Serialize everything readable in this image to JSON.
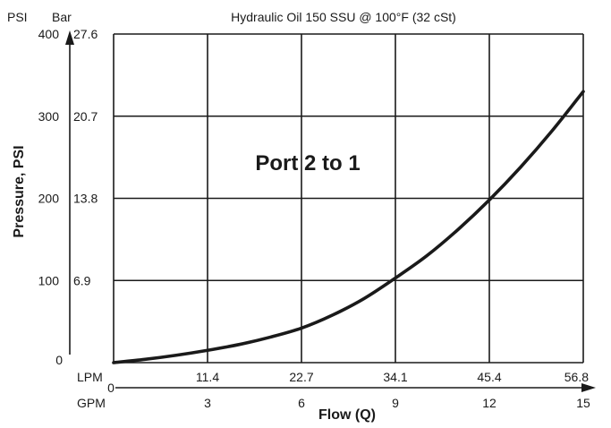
{
  "chart_data": {
    "type": "line",
    "title": "",
    "subtitle": "Hydraulic Oil 150 SSU @ 100°F (32 cSt)",
    "annotation": "Port 2 to 1",
    "ylabel": "Pressure, PSI",
    "xlabel": "Flow (Q)",
    "y_units": {
      "primary": "PSI",
      "secondary": "Bar"
    },
    "x_units": {
      "primary": "LPM",
      "secondary": "GPM"
    },
    "ylim": [
      0,
      400
    ],
    "xlim": [
      0,
      15
    ],
    "y_ticks_psi": [
      "400",
      "300",
      "200",
      "100",
      "0"
    ],
    "y_ticks_bar": [
      "27.6",
      "20.7",
      "13.8",
      "6.9"
    ],
    "x_ticks_lpm": [
      "11.4",
      "22.7",
      "34.1",
      "45.4",
      "56.8"
    ],
    "x_ticks_gpm": [
      "0",
      "3",
      "6",
      "9",
      "12",
      "15"
    ],
    "grid": true,
    "series": [
      {
        "name": "Port 2 to 1",
        "x": [
          0,
          1,
          2,
          3,
          4,
          5,
          6,
          7,
          8,
          9,
          10,
          11,
          12,
          13,
          14,
          15
        ],
        "y": [
          0,
          4,
          9,
          15,
          22,
          31,
          42,
          58,
          78,
          103,
          130,
          162,
          198,
          238,
          282,
          330
        ]
      }
    ]
  }
}
